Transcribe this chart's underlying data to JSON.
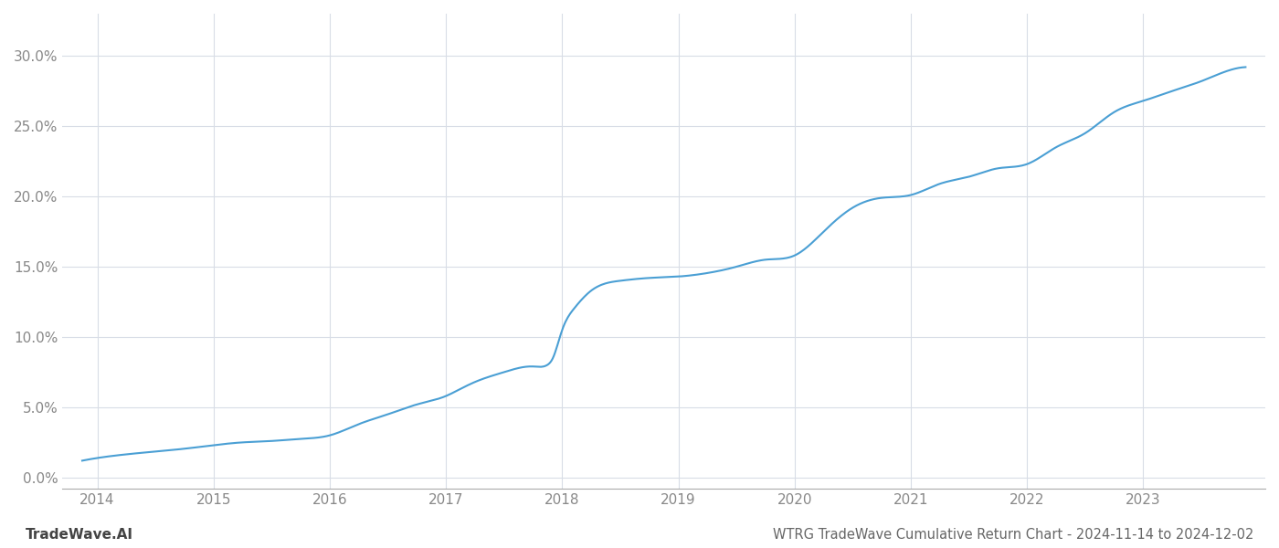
{
  "title": "WTRG TradeWave Cumulative Return Chart - 2024-11-14 to 2024-12-02",
  "watermark": "TradeWave.AI",
  "line_color": "#4a9fd4",
  "background_color": "#ffffff",
  "grid_color": "#d8dde6",
  "x_years": [
    2014,
    2015,
    2016,
    2017,
    2018,
    2019,
    2020,
    2021,
    2022,
    2023
  ],
  "key_x": [
    2013.87,
    2014.05,
    2014.25,
    2014.5,
    2014.75,
    2015.0,
    2015.25,
    2015.5,
    2015.75,
    2016.0,
    2016.25,
    2016.5,
    2016.75,
    2017.0,
    2017.1,
    2017.25,
    2017.5,
    2017.75,
    2017.87,
    2017.92,
    2018.0,
    2018.1,
    2018.25,
    2018.5,
    2018.75,
    2019.0,
    2019.25,
    2019.5,
    2019.75,
    2020.0,
    2020.25,
    2020.5,
    2020.75,
    2021.0,
    2021.25,
    2021.5,
    2021.75,
    2022.0,
    2022.25,
    2022.5,
    2022.75,
    2023.0,
    2023.25,
    2023.5,
    2023.75,
    2023.88
  ],
  "key_y": [
    1.2,
    1.45,
    1.65,
    1.85,
    2.05,
    2.3,
    2.5,
    2.6,
    2.75,
    3.0,
    3.8,
    4.5,
    5.2,
    5.8,
    6.2,
    6.8,
    7.5,
    7.9,
    8.0,
    8.5,
    10.5,
    12.0,
    13.3,
    14.0,
    14.2,
    14.3,
    14.55,
    15.0,
    15.5,
    15.8,
    17.5,
    19.2,
    19.9,
    20.1,
    20.9,
    21.4,
    22.0,
    22.3,
    23.5,
    24.5,
    26.0,
    26.8,
    27.5,
    28.2,
    29.0,
    29.2
  ],
  "ylim": [
    -0.8,
    33
  ],
  "xlim": [
    2013.7,
    2024.05
  ],
  "yticks": [
    0.0,
    5.0,
    10.0,
    15.0,
    20.0,
    25.0,
    30.0
  ],
  "line_width": 1.5,
  "title_fontsize": 10.5,
  "tick_fontsize": 11,
  "watermark_fontsize": 11
}
